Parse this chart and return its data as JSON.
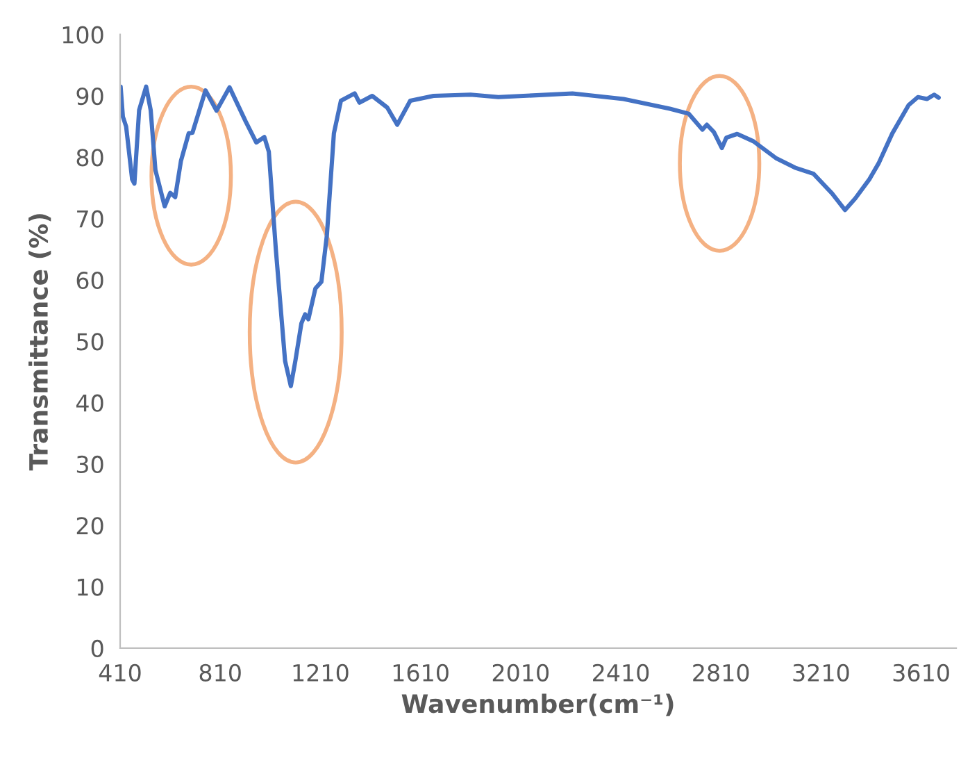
{
  "chart_data": {
    "type": "line",
    "xlabel": "Wavenumber(cm⁻¹)",
    "ylabel": "Transmittance (%)",
    "xlim": [
      410,
      3750
    ],
    "xticks": [
      410,
      810,
      1210,
      1610,
      2010,
      2410,
      2810,
      3210,
      3610
    ],
    "ylim": [
      0,
      100
    ],
    "yticks": [
      0,
      10,
      20,
      30,
      40,
      50,
      60,
      70,
      80,
      90,
      100
    ],
    "grid": false,
    "legend": false,
    "marker": "none",
    "line_style": "solid",
    "series": [
      {
        "color": "#4472c4",
        "x": [
          412,
          421,
          434,
          458,
          467,
          486,
          514,
          532,
          551,
          588,
          610,
          630,
          653,
          684,
          699,
          751,
          795,
          847,
          912,
          954,
          986,
          1004,
          1032,
          1069,
          1092,
          1110,
          1134,
          1149,
          1162,
          1190,
          1214,
          1236,
          1264,
          1292,
          1347,
          1366,
          1417,
          1477,
          1517,
          1569,
          1662,
          1810,
          1921,
          2217,
          2421,
          2606,
          2681,
          2736,
          2754,
          2782,
          2814,
          2832,
          2875,
          2940,
          3032,
          3106,
          3180,
          3254,
          3306,
          3347,
          3403,
          3440,
          3495,
          3560,
          3597,
          3634,
          3662,
          3680
        ],
        "values": [
          91.5,
          86.6,
          85,
          76.4,
          75.7,
          87.7,
          91.5,
          87.7,
          77.9,
          72,
          74.2,
          73.5,
          79.4,
          83.9,
          84,
          90.9,
          87.6,
          91.4,
          85.8,
          82.4,
          83.3,
          80.9,
          65,
          46.8,
          42.7,
          46.8,
          52.9,
          54.4,
          53.6,
          58.6,
          59.7,
          67.3,
          83.9,
          89.2,
          90.4,
          88.9,
          90,
          88.1,
          85.3,
          89.2,
          90,
          90.2,
          89.8,
          90.4,
          89.5,
          87.9,
          87.1,
          84.5,
          85.3,
          84.1,
          81.5,
          83.2,
          83.8,
          82.6,
          79.8,
          78.3,
          77.3,
          74.1,
          71.4,
          73.3,
          76.4,
          79,
          83.9,
          88.5,
          89.8,
          89.5,
          90.2,
          89.7
        ]
      }
    ]
  }
}
